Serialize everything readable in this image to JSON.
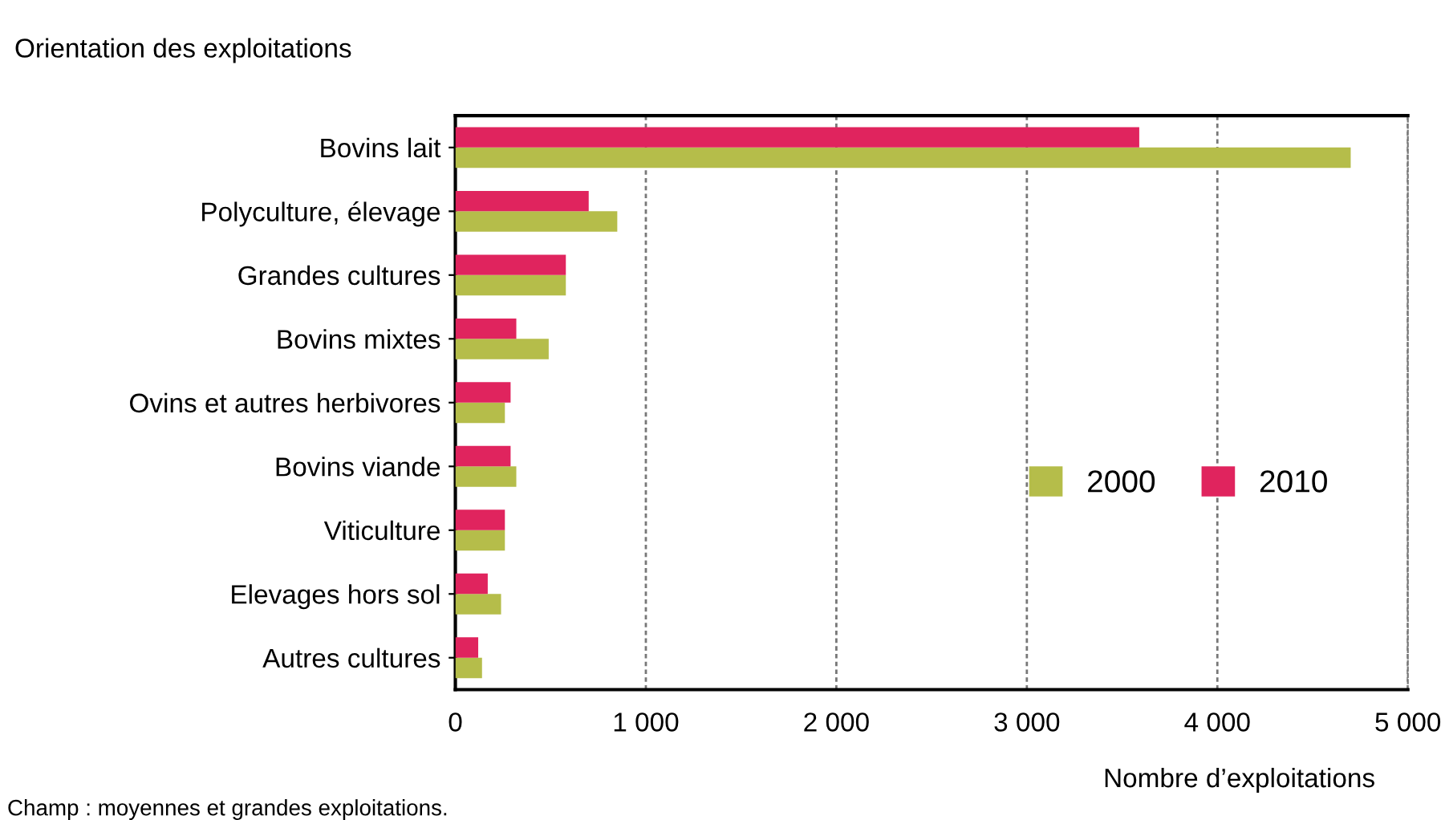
{
  "chart_data": {
    "type": "bar",
    "orientation": "horizontal",
    "title": "Orientation des exploitations",
    "xlabel": "Nombre d’exploitations",
    "categories": [
      "Bovins lait",
      "Polyculture, élevage",
      "Grandes cultures",
      "Bovins mixtes",
      "Ovins et autres herbivores",
      "Bovins viande",
      "Viticulture",
      "Elevages hors sol",
      "Autres cultures"
    ],
    "series": [
      {
        "name": "2000",
        "color": "#b5bd4a",
        "values": [
          4700,
          850,
          580,
          490,
          260,
          320,
          260,
          240,
          140
        ]
      },
      {
        "name": "2010",
        "color": "#e0245e",
        "values": [
          3590,
          700,
          580,
          320,
          290,
          290,
          260,
          170,
          120
        ]
      }
    ],
    "xlim": [
      0,
      5000
    ],
    "xticks": [
      {
        "value": 0,
        "label": "0"
      },
      {
        "value": 1000,
        "label": "1 000"
      },
      {
        "value": 2000,
        "label": "2 000"
      },
      {
        "value": 3000,
        "label": "3 000"
      },
      {
        "value": 4000,
        "label": "4 000"
      },
      {
        "value": 5000,
        "label": "5 000"
      }
    ],
    "grid": "x",
    "legend": "right",
    "annotations": [
      "Champ : moyennes et grandes exploitations."
    ]
  }
}
